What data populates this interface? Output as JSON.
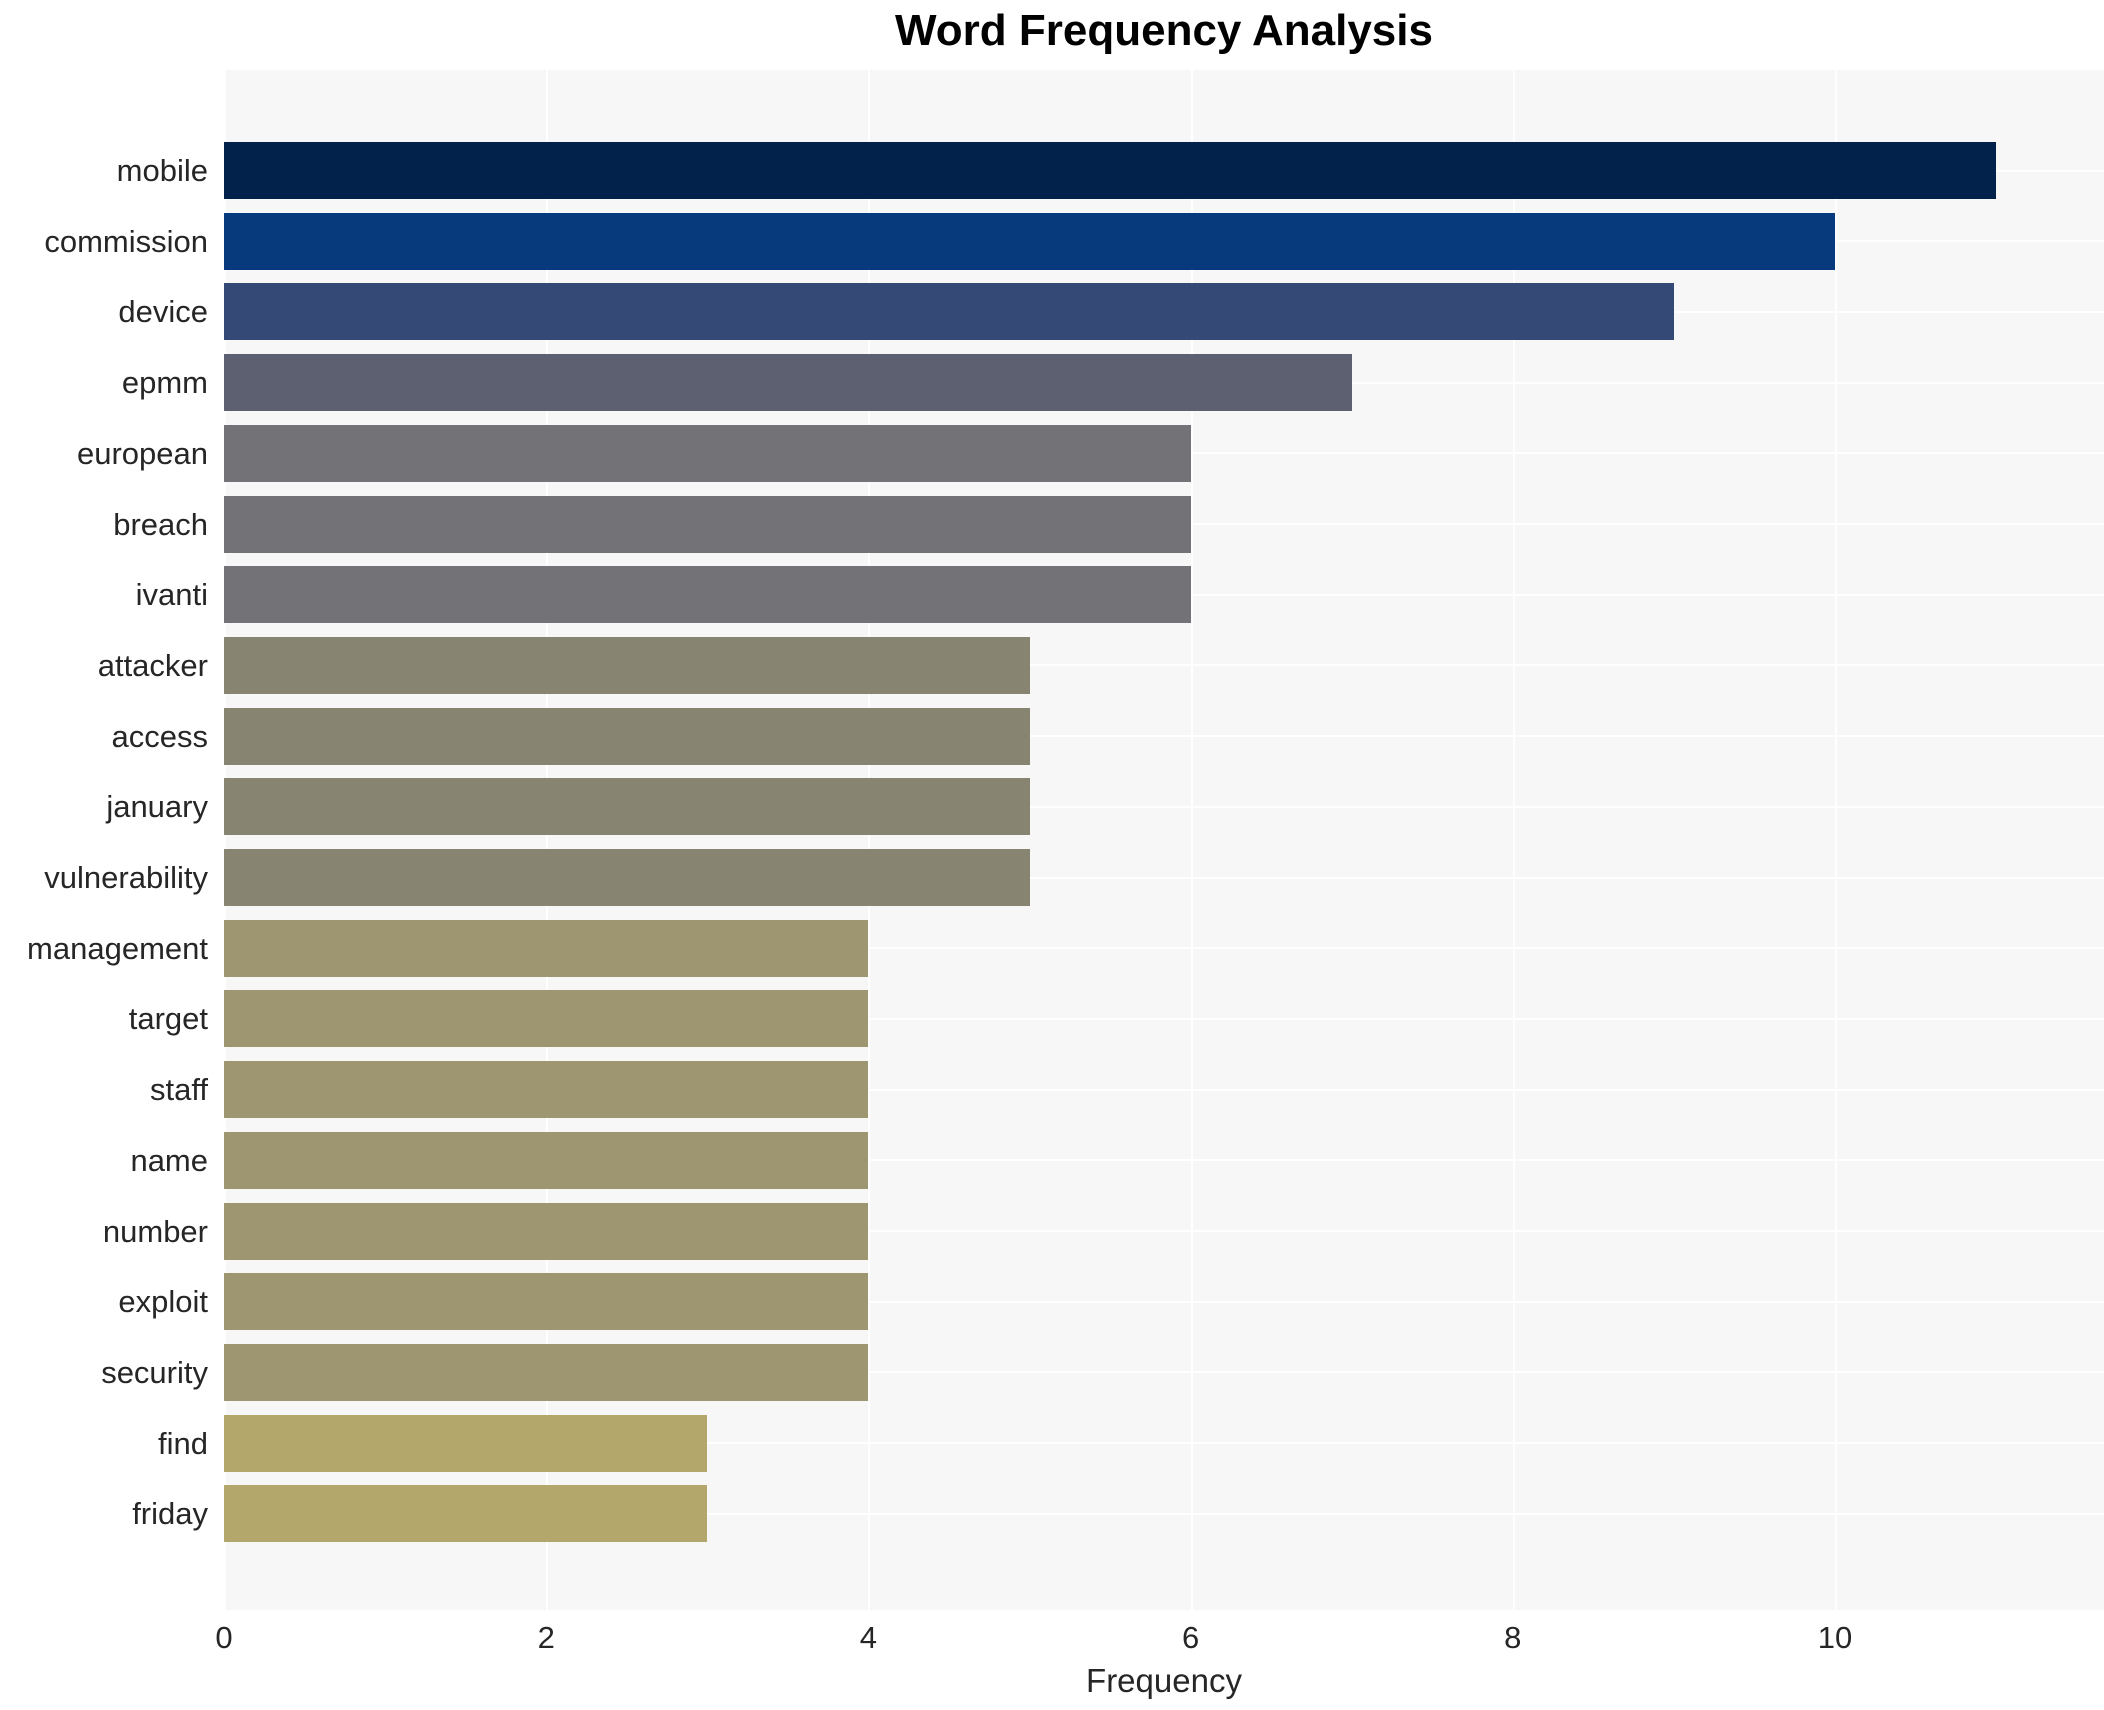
{
  "title": "Word Frequency Analysis",
  "chart_data": {
    "type": "bar",
    "orientation": "horizontal",
    "title": "Word Frequency Analysis",
    "xlabel": "Frequency",
    "ylabel": "",
    "categories": [
      "mobile",
      "commission",
      "device",
      "epmm",
      "european",
      "breach",
      "ivanti",
      "attacker",
      "access",
      "january",
      "vulnerability",
      "management",
      "target",
      "staff",
      "name",
      "number",
      "exploit",
      "security",
      "find",
      "friday"
    ],
    "values": [
      11,
      10,
      9,
      7,
      6,
      6,
      6,
      5,
      5,
      5,
      5,
      4,
      4,
      4,
      4,
      4,
      4,
      4,
      3,
      3
    ],
    "bar_colors": [
      "#02224c",
      "#063a7c",
      "#354976",
      "#5d6070",
      "#737276",
      "#737276",
      "#737276",
      "#878472",
      "#878472",
      "#878472",
      "#878472",
      "#9e9670",
      "#9e9670",
      "#9e9670",
      "#9e9670",
      "#9e9670",
      "#9e9670",
      "#9e9670",
      "#b3a76b",
      "#b3a76b"
    ],
    "x_ticks": [
      0,
      2,
      4,
      6,
      8,
      10
    ],
    "xlim": [
      0,
      11.67
    ],
    "grid": true,
    "legend": "none",
    "plot_bg_color": "#f7f7f8",
    "grid_color": "#ffffff",
    "tick_label_color": "#262626",
    "title_color": "#000000"
  }
}
